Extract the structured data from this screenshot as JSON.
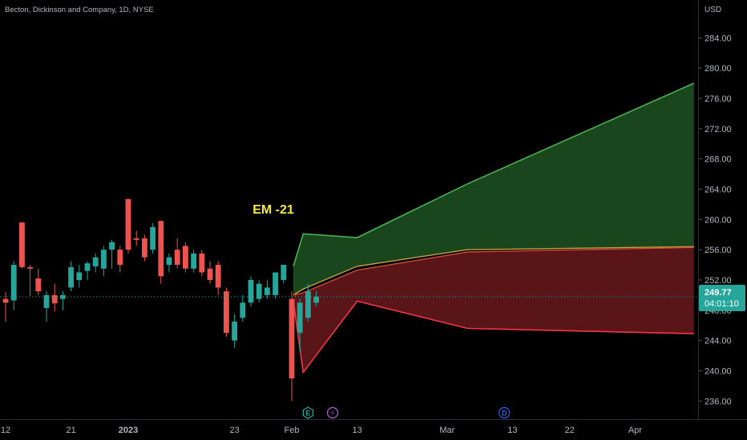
{
  "header": {
    "symbol_title": "Becton, Dickinson and Company, 1D, NYSE"
  },
  "axis": {
    "currency": "USD"
  },
  "colors": {
    "background": "#000000",
    "up": "#26a69a",
    "down": "#ef5350",
    "band_upper_fill": "#1b4a1f",
    "band_lower_fill": "#5e1619",
    "band_upper_line": "#4caf50",
    "band_lower_line": "#f23645",
    "mid_line": "#c8a040",
    "annotation": "#f5e94a",
    "axis_text": "#b2b5be",
    "price_tag": "#26a69a"
  },
  "annotation": {
    "text": "EM -21"
  },
  "price_tag": {
    "price": "249.77",
    "countdown": "04:01:10",
    "value": 249.77
  },
  "event_markers": [
    {
      "label": "E",
      "name": "earnings",
      "after_bar": 37,
      "color": "#26a69a"
    },
    {
      "label": "⚡",
      "name": "split",
      "after_bar": 40,
      "color": "#b063d6"
    },
    {
      "label": "D",
      "name": "dividend",
      "after_bar": 61,
      "color": "#2962ff"
    }
  ],
  "chart_data": {
    "type": "candlestick",
    "title": "Becton, Dickinson and Company, 1D, NYSE",
    "y_range": [
      233.6,
      289.0
    ],
    "y_ticks": [
      "236.00",
      "240.00",
      "244.00",
      "248.00",
      "252.00",
      "256.00",
      "260.00",
      "264.00",
      "268.00",
      "272.00",
      "276.00",
      "280.00",
      "284.00"
    ],
    "x_ticks": [
      {
        "label": "12",
        "bar": 0
      },
      {
        "label": "21",
        "bar": 8
      },
      {
        "label": "2023",
        "bar": 15,
        "bold": true
      },
      {
        "label": "23",
        "bar": 28
      },
      {
        "label": "Feb",
        "bar": 35
      },
      {
        "label": "13",
        "bar": 43
      },
      {
        "label": "Mar",
        "bar": 54
      },
      {
        "label": "13",
        "bar": 62
      },
      {
        "label": "22",
        "bar": 69
      },
      {
        "label": "Apr",
        "bar": 77
      }
    ],
    "bars_visible": 83,
    "candles": [
      {
        "o": 249.5,
        "h": 250.4,
        "l": 246.5,
        "c": 249.0
      },
      {
        "o": 249.3,
        "h": 254.5,
        "l": 248.0,
        "c": 254.0
      },
      {
        "o": 259.6,
        "h": 259.6,
        "l": 253.5,
        "c": 253.7
      },
      {
        "o": 253.7,
        "h": 254.0,
        "l": 249.9,
        "c": 253.5
      },
      {
        "o": 252.2,
        "h": 253.5,
        "l": 250.0,
        "c": 250.5
      },
      {
        "o": 248.3,
        "h": 250.5,
        "l": 246.5,
        "c": 250.0
      },
      {
        "o": 250.0,
        "h": 251.5,
        "l": 247.8,
        "c": 248.9
      },
      {
        "o": 249.5,
        "h": 250.5,
        "l": 248.0,
        "c": 250.0
      },
      {
        "o": 251.0,
        "h": 254.5,
        "l": 250.5,
        "c": 253.7
      },
      {
        "o": 252.0,
        "h": 254.0,
        "l": 251.0,
        "c": 253.0
      },
      {
        "o": 253.2,
        "h": 254.5,
        "l": 252.0,
        "c": 254.2
      },
      {
        "o": 253.8,
        "h": 255.5,
        "l": 253.0,
        "c": 255.0
      },
      {
        "o": 253.5,
        "h": 256.5,
        "l": 252.5,
        "c": 256.0
      },
      {
        "o": 256.0,
        "h": 257.3,
        "l": 253.5,
        "c": 257.0
      },
      {
        "o": 256.0,
        "h": 256.5,
        "l": 253.0,
        "c": 254.0
      },
      {
        "o": 262.7,
        "h": 262.7,
        "l": 255.5,
        "c": 256.0
      },
      {
        "o": 257.5,
        "h": 258.5,
        "l": 256.5,
        "c": 257.3
      },
      {
        "o": 257.5,
        "h": 258.0,
        "l": 254.5,
        "c": 255.0
      },
      {
        "o": 256.0,
        "h": 259.5,
        "l": 255.5,
        "c": 259.0
      },
      {
        "o": 259.8,
        "h": 259.8,
        "l": 251.5,
        "c": 252.5
      },
      {
        "o": 254.0,
        "h": 255.5,
        "l": 253.0,
        "c": 255.0
      },
      {
        "o": 256.0,
        "h": 257.5,
        "l": 253.5,
        "c": 254.0
      },
      {
        "o": 256.5,
        "h": 257.0,
        "l": 253.0,
        "c": 253.5
      },
      {
        "o": 253.5,
        "h": 256.0,
        "l": 253.0,
        "c": 255.5
      },
      {
        "o": 255.5,
        "h": 256.0,
        "l": 252.5,
        "c": 253.0
      },
      {
        "o": 253.5,
        "h": 254.5,
        "l": 251.5,
        "c": 252.0
      },
      {
        "o": 254.0,
        "h": 254.5,
        "l": 250.0,
        "c": 251.0
      },
      {
        "o": 250.5,
        "h": 251.0,
        "l": 244.5,
        "c": 245.0
      },
      {
        "o": 244.0,
        "h": 247.5,
        "l": 243.0,
        "c": 246.5
      },
      {
        "o": 247.0,
        "h": 250.0,
        "l": 246.5,
        "c": 249.0
      },
      {
        "o": 249.0,
        "h": 252.5,
        "l": 248.5,
        "c": 252.0
      },
      {
        "o": 249.5,
        "h": 252.0,
        "l": 249.0,
        "c": 251.5
      },
      {
        "o": 250.0,
        "h": 252.0,
        "l": 249.5,
        "c": 251.0
      },
      {
        "o": 250.0,
        "h": 253.0,
        "l": 249.5,
        "c": 253.0
      },
      {
        "o": 252.0,
        "h": 254.0,
        "l": 251.5,
        "c": 254.0
      },
      {
        "o": 249.5,
        "h": 250.5,
        "l": 236.0,
        "c": 239.0
      },
      {
        "o": 245.0,
        "h": 249.5,
        "l": 242.5,
        "c": 249.0
      },
      {
        "o": 247.0,
        "h": 251.5,
        "l": 246.5,
        "c": 250.5
      },
      {
        "o": 249.0,
        "h": 250.5,
        "l": 248.5,
        "c": 249.8
      }
    ],
    "expected_move": {
      "label": "EM -21",
      "start_bar": 35.2,
      "bars": [
        35.2,
        36.4,
        43.0,
        56.5,
        84.2
      ],
      "upper": [
        253.8,
        258.1,
        257.6,
        264.7,
        278.0
      ],
      "mid_upper": [
        250.0,
        250.8,
        253.8,
        256.0,
        256.4
      ],
      "mid_lower": [
        250.0,
        250.3,
        253.3,
        255.7,
        256.3
      ],
      "lower": [
        249.2,
        239.8,
        249.2,
        245.6,
        244.9
      ]
    }
  }
}
